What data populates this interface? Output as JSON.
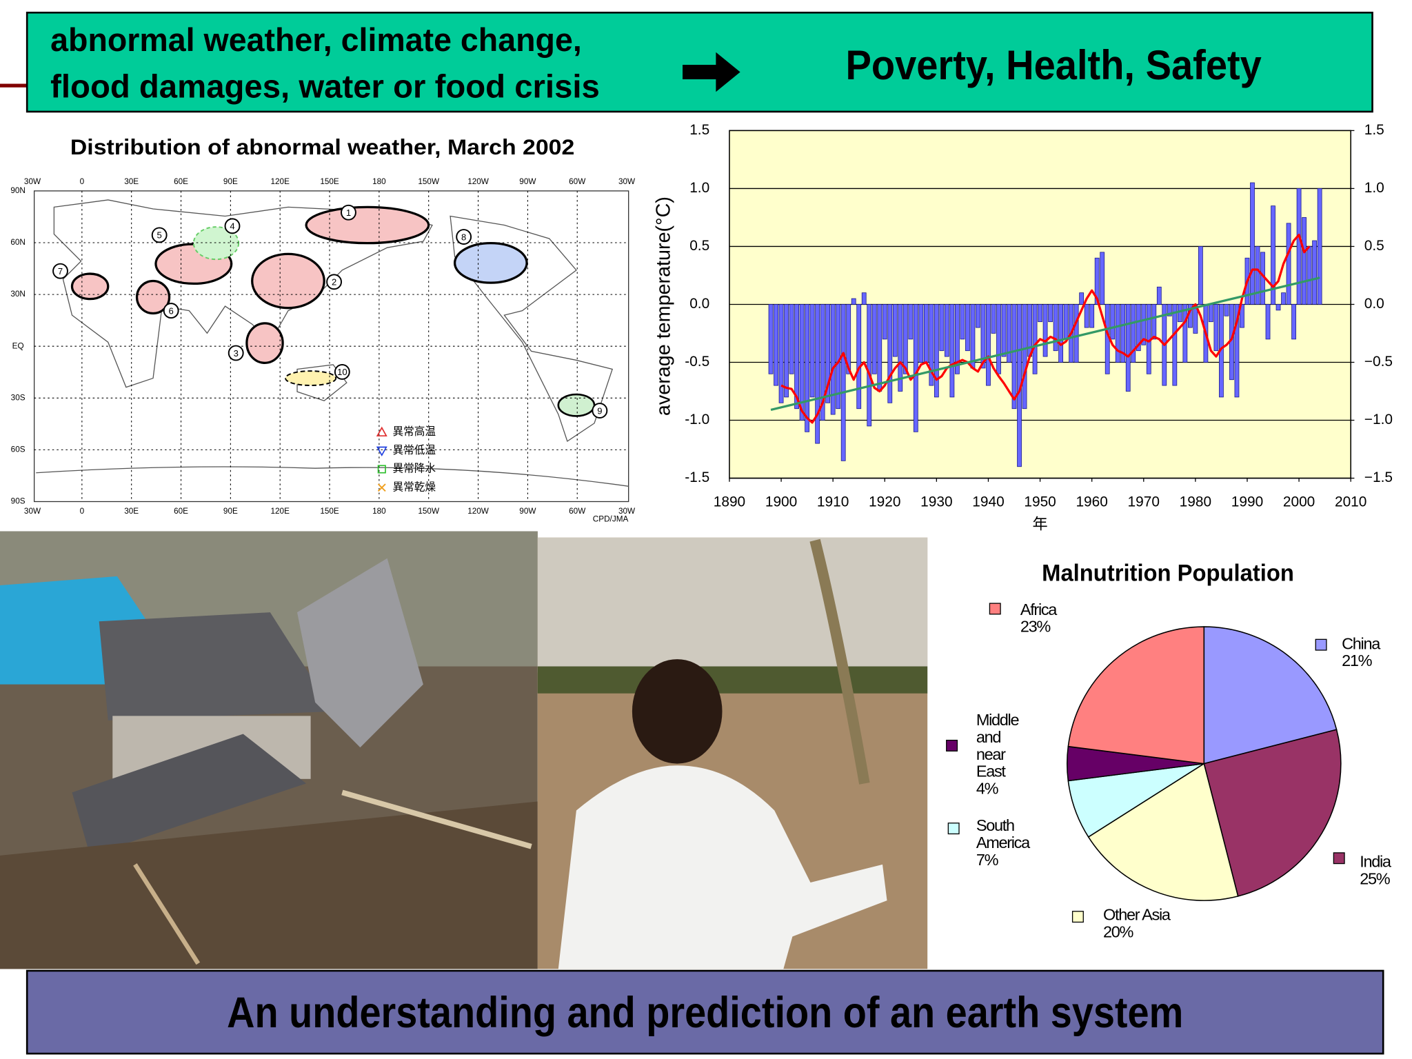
{
  "header": {
    "lines": [
      "abnormal weather, climate change,",
      "flood damages, water or  food crisis"
    ],
    "right": "Poverty, Health, Safety"
  },
  "map": {
    "title": "Distribution of abnormal weather, March 2002",
    "lon_labels": [
      "30W",
      "0",
      "30E",
      "60E",
      "90E",
      "120E",
      "150E",
      "180",
      "150W",
      "120W",
      "90W",
      "60W",
      "30W"
    ],
    "lat_labels": [
      "90N",
      "60N",
      "30N",
      "EQ",
      "30S",
      "60S",
      "90S"
    ],
    "legend": [
      "異常高温",
      "異常低温",
      "異常降水",
      "異常乾燥"
    ],
    "region_labels": [
      "1",
      "2",
      "3",
      "4",
      "5",
      "6",
      "7",
      "8",
      "9",
      "10"
    ],
    "credit": "CPD/JMA"
  },
  "chart_data": [
    {
      "type": "bar",
      "ylabel": "average temperature(°C)",
      "xlabel": "年",
      "x": [
        1898,
        1899,
        1900,
        1901,
        1902,
        1903,
        1904,
        1905,
        1906,
        1907,
        1908,
        1909,
        1910,
        1911,
        1912,
        1913,
        1914,
        1915,
        1916,
        1917,
        1918,
        1919,
        1920,
        1921,
        1922,
        1923,
        1924,
        1925,
        1926,
        1927,
        1928,
        1929,
        1930,
        1931,
        1932,
        1933,
        1934,
        1935,
        1936,
        1937,
        1938,
        1939,
        1940,
        1941,
        1942,
        1943,
        1944,
        1945,
        1946,
        1947,
        1948,
        1949,
        1950,
        1951,
        1952,
        1953,
        1954,
        1955,
        1956,
        1957,
        1958,
        1959,
        1960,
        1961,
        1962,
        1963,
        1964,
        1965,
        1966,
        1967,
        1968,
        1969,
        1970,
        1971,
        1972,
        1973,
        1974,
        1975,
        1976,
        1977,
        1978,
        1979,
        1980,
        1981,
        1982,
        1983,
        1984,
        1985,
        1986,
        1987,
        1988,
        1989,
        1990,
        1991,
        1992,
        1993,
        1994,
        1995,
        1996,
        1997,
        1998,
        1999,
        2000,
        2001,
        2002,
        2003,
        2004
      ],
      "series": [
        {
          "type": "bar",
          "color": "#6666ff",
          "values": [
            -0.6,
            -0.7,
            -0.85,
            -0.8,
            -0.6,
            -0.9,
            -1.0,
            -1.1,
            -0.8,
            -1.2,
            -1.0,
            -0.85,
            -0.95,
            -0.9,
            -1.35,
            -0.6,
            0.05,
            -0.9,
            0.1,
            -1.05,
            -0.6,
            -0.75,
            -0.3,
            -0.85,
            -0.45,
            -0.75,
            -0.6,
            -0.3,
            -1.1,
            -0.5,
            -0.5,
            -0.7,
            -0.8,
            -0.4,
            -0.45,
            -0.8,
            -0.6,
            -0.3,
            -0.4,
            -0.55,
            -0.2,
            -0.55,
            -0.7,
            -0.25,
            -0.6,
            -0.45,
            -0.5,
            -0.9,
            -1.4,
            -0.9,
            -0.45,
            -0.6,
            -0.15,
            -0.45,
            -0.15,
            -0.4,
            -0.5,
            -0.3,
            -0.5,
            -0.5,
            0.1,
            -0.2,
            -0.2,
            0.4,
            0.45,
            -0.6,
            -0.3,
            -0.5,
            -0.5,
            -0.75,
            -0.5,
            -0.4,
            -0.35,
            -0.6,
            -0.3,
            0.15,
            -0.7,
            -0.1,
            -0.7,
            -0.15,
            -0.5,
            -0.2,
            -0.25,
            0.5,
            -0.5,
            -0.15,
            -0.4,
            -0.8,
            -0.1,
            -0.65,
            -0.8,
            -0.2,
            0.4,
            1.05,
            0.5,
            0.45,
            -0.3,
            0.85,
            -0.05,
            0.1,
            0.7,
            -0.3,
            1.0,
            0.75,
            0.5,
            0.55,
            1.0
          ]
        },
        {
          "type": "line",
          "color": "#ff0000",
          "values": [
            null,
            null,
            -0.7,
            -0.72,
            -0.73,
            -0.8,
            -0.92,
            -0.98,
            -1.02,
            -0.95,
            -0.85,
            -0.7,
            -0.55,
            -0.5,
            -0.42,
            -0.55,
            -0.65,
            -0.55,
            -0.5,
            -0.6,
            -0.72,
            -0.75,
            -0.7,
            -0.62,
            -0.55,
            -0.5,
            -0.55,
            -0.65,
            -0.6,
            -0.52,
            -0.5,
            -0.58,
            -0.65,
            -0.62,
            -0.55,
            -0.52,
            -0.5,
            -0.48,
            -0.5,
            -0.55,
            -0.58,
            -0.5,
            -0.45,
            -0.55,
            -0.62,
            -0.68,
            -0.75,
            -0.82,
            -0.75,
            -0.6,
            -0.45,
            -0.35,
            -0.3,
            -0.32,
            -0.28,
            -0.3,
            -0.35,
            -0.32,
            -0.25,
            -0.15,
            -0.05,
            0.05,
            0.12,
            0.05,
            -0.1,
            -0.25,
            -0.35,
            -0.4,
            -0.42,
            -0.45,
            -0.4,
            -0.35,
            -0.3,
            -0.32,
            -0.28,
            -0.3,
            -0.35,
            -0.3,
            -0.25,
            -0.2,
            -0.15,
            -0.05,
            0.0,
            -0.1,
            -0.25,
            -0.4,
            -0.45,
            -0.38,
            -0.35,
            -0.3,
            -0.15,
            0.05,
            0.2,
            0.3,
            0.3,
            0.25,
            0.2,
            0.15,
            0.2,
            0.35,
            0.45,
            0.55,
            0.6,
            0.45,
            0.5,
            null,
            null
          ]
        },
        {
          "type": "line",
          "color": "#339966",
          "x": [
            1898,
            2004
          ],
          "values": [
            -0.91,
            0.23
          ]
        }
      ],
      "xlim": [
        1890,
        2010
      ],
      "xticks": [
        1890,
        1900,
        1910,
        1920,
        1930,
        1940,
        1950,
        1960,
        1970,
        1980,
        1990,
        2000,
        2010
      ],
      "ylim": [
        -1.5,
        1.5
      ],
      "yticks": [
        -1.5,
        {
          "value": -1,
          "label": "-1.0"
        },
        -0.5,
        {
          "value": 0,
          "label": "0.0"
        },
        0.5,
        {
          "value": 1,
          "label": "1.0"
        },
        1.5
      ],
      "y2lim": [
        -1.5,
        1.5
      ],
      "y2ticks": [
        {
          "value": -1.5,
          "label": "−1.5"
        },
        {
          "value": -1,
          "label": "−1.0"
        },
        {
          "value": -0.5,
          "label": "−0.5"
        },
        {
          "value": 0,
          "label": "0.0"
        },
        0.5,
        {
          "value": 1,
          "label": "1.0"
        },
        1.5
      ],
      "grid": true,
      "background": "#ffffcc"
    },
    {
      "type": "pie",
      "title": "Malnutrition Population",
      "categories": [
        "China",
        "India",
        "Other Asia",
        "South America",
        "Middle and near East",
        "Africa"
      ],
      "values": [
        21,
        25,
        20,
        7,
        4,
        23
      ],
      "value_labels": [
        "21%",
        "25%",
        "20%",
        "7%",
        "4%",
        "23%"
      ],
      "colors": [
        "#9999ff",
        "#993366",
        "#ffffcc",
        "#ccffff",
        "#660066",
        "#ff8080"
      ]
    }
  ],
  "footer": {
    "text": "An understanding and prediction of an earth system"
  }
}
